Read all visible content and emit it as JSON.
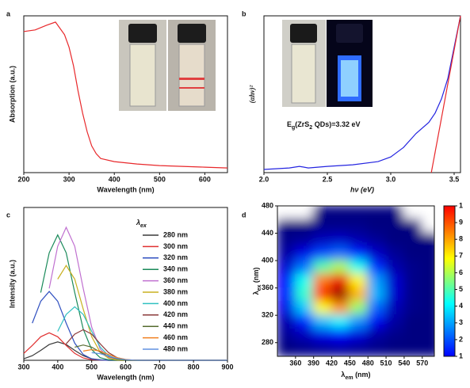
{
  "chart_data": [
    {
      "type": "line",
      "panel_label": "a",
      "xlabel": "Wavelength (nm)",
      "ylabel": "Absorption (a.u.)",
      "x": [
        200,
        225,
        250,
        270,
        290,
        300,
        310,
        320,
        330,
        340,
        350,
        360,
        370,
        400,
        450,
        500,
        550,
        600,
        650
      ],
      "series": [
        {
          "color": "#e8282b",
          "values": [
            90,
            91,
            94,
            96,
            88,
            80,
            68,
            52,
            38,
            26,
            17,
            12,
            9,
            7,
            5.5,
            4.5,
            4,
            3.5,
            3
          ]
        }
      ],
      "xlim": [
        200,
        650
      ],
      "ylim": [
        0,
        100
      ],
      "xticks": [
        200,
        300,
        400,
        500,
        600
      ]
    },
    {
      "type": "line",
      "panel_label": "b",
      "xlabel": "hν (eV)",
      "ylabel": "(αhν)²",
      "annotation": [
        "E",
        "g",
        "(ZrS",
        "2",
        " QDs)=3.32 eV"
      ],
      "x": [
        2.0,
        2.2,
        2.28,
        2.35,
        2.5,
        2.7,
        2.9,
        3.0,
        3.1,
        3.2,
        3.3,
        3.35,
        3.4,
        3.45,
        3.5,
        3.55
      ],
      "series": [
        {
          "color": "#2424e0",
          "values": [
            2,
            3,
            4,
            3,
            4,
            5,
            7,
            10,
            16,
            25,
            32,
            38,
            47,
            60,
            80,
            100
          ]
        },
        {
          "color": "#e8282b",
          "x": [
            3.32,
            3.55
          ],
          "values": [
            0,
            100
          ]
        }
      ],
      "xlim": [
        2.0,
        3.55
      ],
      "ylim": [
        0,
        100
      ],
      "xticks": [
        {
          "value": 2,
          "label": "2.0"
        },
        {
          "value": 2.5,
          "label": "2.5"
        },
        {
          "value": 3,
          "label": "3.0"
        },
        {
          "value": 3.5,
          "label": "3.5"
        }
      ]
    },
    {
      "type": "line",
      "panel_label": "c",
      "xlabel": "Wavelength (nm)",
      "ylabel": "Intensity (a.u.)",
      "legend_title": [
        "λ",
        "ex"
      ],
      "x": [
        300,
        325,
        350,
        375,
        400,
        425,
        450,
        475,
        500,
        525,
        550,
        575,
        600,
        625,
        650,
        700,
        900
      ],
      "series": [
        {
          "name": "280 nm",
          "color": "#3a3a3a",
          "values": [
            1.0,
            3.0,
            6.5,
            10.3,
            12,
            10.3,
            6.5,
            3.0,
            1.0,
            0.3,
            0,
            0,
            0,
            0,
            0,
            0,
            0
          ]
        },
        {
          "name": "300 nm",
          "color": "#e03030",
          "values": [
            4.5,
            9.7,
            15.4,
            18,
            15.4,
            9.7,
            4.5,
            1.5,
            0.4,
            0.1,
            0,
            0,
            0,
            0,
            0,
            0,
            0
          ]
        },
        {
          "name": "320 nm",
          "color": "#3050c0",
          "values": [
            null,
            24.3,
            38.6,
            45,
            38.6,
            24.3,
            11.2,
            3.8,
            0.9,
            0.2,
            0,
            0,
            0,
            0,
            0,
            0,
            0
          ]
        },
        {
          "name": "340 nm",
          "color": "#1a8a5a",
          "values": [
            null,
            null,
            44.3,
            70.3,
            82,
            70.3,
            44.3,
            20.4,
            7.0,
            1.7,
            0.3,
            0,
            0,
            0,
            0,
            0,
            0
          ]
        },
        {
          "name": "360 nm",
          "color": "#c070d0",
          "values": [
            null,
            null,
            null,
            47.0,
            74.6,
            87,
            74.6,
            47.0,
            21.7,
            7.4,
            1.8,
            0.3,
            0,
            0,
            0,
            0,
            0
          ]
        },
        {
          "name": "380 nm",
          "color": "#c8b020",
          "values": [
            null,
            null,
            null,
            null,
            53.1,
            62,
            53.1,
            33.5,
            15.4,
            5.3,
            1.3,
            0.2,
            0,
            0,
            0,
            0,
            0
          ]
        },
        {
          "name": "400 nm",
          "color": "#30c0c0",
          "values": [
            null,
            null,
            null,
            null,
            18.9,
            30.0,
            35,
            30.0,
            18.9,
            8.7,
            3.0,
            0.7,
            0.1,
            0,
            0,
            0,
            0
          ]
        },
        {
          "name": "420 nm",
          "color": "#8b3a3a",
          "values": [
            null,
            null,
            null,
            null,
            null,
            10.8,
            17.1,
            20,
            17.1,
            10.8,
            5.0,
            1.7,
            0.4,
            0.1,
            0,
            0,
            0
          ]
        },
        {
          "name": "440 nm",
          "color": "#556b2f",
          "values": [
            null,
            null,
            null,
            null,
            null,
            null,
            8.6,
            10,
            8.6,
            5.4,
            2.5,
            0.9,
            0.2,
            0,
            0,
            0,
            0
          ]
        },
        {
          "name": "460 nm",
          "color": "#f08020",
          "values": [
            null,
            null,
            null,
            null,
            null,
            null,
            null,
            6.0,
            7,
            6.0,
            3.8,
            1.7,
            0.6,
            0.1,
            0,
            0,
            0
          ]
        },
        {
          "name": "480 nm",
          "color": "#6090e0",
          "values": [
            null,
            null,
            null,
            null,
            null,
            null,
            null,
            null,
            5,
            4.3,
            2.7,
            1.2,
            0.4,
            0.1,
            0,
            0,
            0
          ]
        }
      ],
      "xlim": [
        300,
        900
      ],
      "ylim": [
        0,
        100
      ],
      "xticks": [
        300,
        400,
        500,
        600,
        700,
        800,
        900
      ]
    },
    {
      "type": "heatmap",
      "panel_label": "d",
      "xlabel": [
        "λ",
        "em",
        " (nm)"
      ],
      "ylabel": [
        "λ",
        "ex",
        " (nm)"
      ],
      "x": [
        345,
        375,
        405,
        435,
        465,
        495,
        525,
        555,
        585
      ],
      "y": [
        470,
        450,
        430,
        410,
        390,
        370,
        350,
        330,
        310,
        290,
        270
      ],
      "z": [
        [
          null,
          null,
          1.0,
          1.0,
          1.0,
          1.0,
          1.0,
          null,
          null
        ],
        [
          1.0,
          1.0,
          1.1,
          1.1,
          1.1,
          1.0,
          1.0,
          1.0,
          null
        ],
        [
          1.1,
          1.2,
          1.5,
          1.6,
          1.4,
          1.2,
          1.0,
          1.0,
          1.0
        ],
        [
          1.3,
          1.9,
          2.7,
          3.0,
          2.4,
          1.6,
          1.2,
          1.0,
          1.0
        ],
        [
          1.7,
          3.1,
          5.1,
          5.9,
          4.5,
          2.5,
          1.4,
          1.1,
          1.0
        ],
        [
          2.1,
          4.5,
          7.8,
          9.0,
          6.7,
          3.5,
          1.7,
          1.1,
          1.0
        ],
        [
          2.2,
          4.8,
          8.5,
          9.8,
          7.3,
          3.7,
          1.7,
          1.1,
          1.0
        ],
        [
          1.9,
          3.9,
          6.6,
          7.6,
          5.7,
          3.0,
          1.5,
          1.1,
          1.0
        ],
        [
          1.4,
          2.4,
          3.8,
          4.3,
          3.4,
          2.0,
          1.3,
          1.0,
          1.0
        ],
        [
          1.2,
          1.5,
          1.9,
          2.1,
          1.8,
          1.3,
          1.1,
          1.0,
          1.0
        ],
        [
          1.0,
          1.1,
          1.2,
          1.3,
          1.2,
          1.1,
          1.0,
          1.0,
          1.0
        ]
      ],
      "xlim": [
        330,
        590
      ],
      "ylim": [
        260,
        480
      ],
      "zlim": [
        1,
        10
      ],
      "xticks": [
        360,
        390,
        420,
        450,
        480,
        510,
        540,
        570
      ],
      "yticks": [
        280,
        320,
        360,
        400,
        440,
        480
      ],
      "zticks": [
        1,
        2,
        3,
        4,
        5,
        6,
        7,
        8,
        9,
        {
          "value": 10,
          "label": "1"
        }
      ]
    }
  ]
}
